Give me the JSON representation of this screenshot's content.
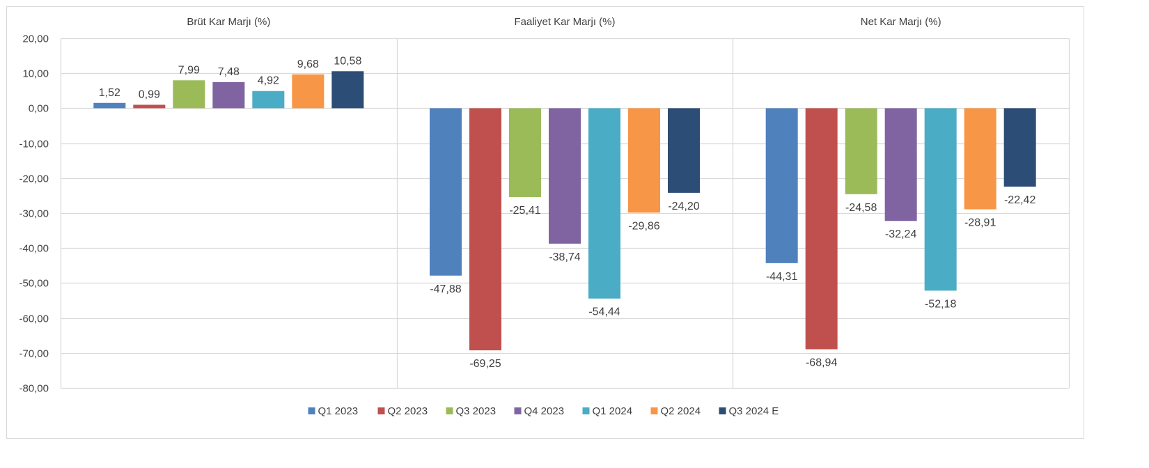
{
  "chart_data": {
    "type": "bar",
    "categories": [
      "Brüt Kar Marjı (%)",
      "Faaliyet Kar Marjı (%)",
      "Net Kar Marjı (%)"
    ],
    "series": [
      {
        "name": "Q1 2023",
        "color": "#4F81BD",
        "values": [
          1.52,
          -47.88,
          -44.31
        ],
        "labels": [
          "1,52",
          "-47,88",
          "-44,31"
        ]
      },
      {
        "name": "Q2 2023",
        "color": "#C0504D",
        "values": [
          0.99,
          -69.25,
          -68.94
        ],
        "labels": [
          "0,99",
          "-69,25",
          "-68,94"
        ]
      },
      {
        "name": "Q3 2023",
        "color": "#9BBB59",
        "values": [
          7.99,
          -25.41,
          -24.58
        ],
        "labels": [
          "7,99",
          "-25,41",
          "-24,58"
        ]
      },
      {
        "name": "Q4 2023",
        "color": "#8064A2",
        "values": [
          7.48,
          -38.74,
          -32.24
        ],
        "labels": [
          "7,48",
          "-38,74",
          "-32,24"
        ]
      },
      {
        "name": "Q1 2024",
        "color": "#4BACC6",
        "values": [
          4.92,
          -54.44,
          -52.18
        ],
        "labels": [
          "4,92",
          "-54,44",
          "-52,18"
        ]
      },
      {
        "name": "Q2 2024",
        "color": "#F79646",
        "values": [
          9.68,
          -29.86,
          -28.91
        ],
        "labels": [
          "9,68",
          "-29,86",
          "-28,91"
        ]
      },
      {
        "name": "Q3 2024 E",
        "color": "#2C4D75",
        "values": [
          10.58,
          -24.2,
          -22.42
        ],
        "labels": [
          "10,58",
          "-24,20",
          "-22,42"
        ]
      }
    ],
    "ylim": [
      -80,
      20
    ],
    "yticks": [
      20,
      10,
      0,
      -10,
      -20,
      -30,
      -40,
      -50,
      -60,
      -70,
      -80
    ],
    "ytick_labels": [
      "20,00",
      "10,00",
      "0,00",
      "-10,00",
      "-20,00",
      "-30,00",
      "-40,00",
      "-50,00",
      "-60,00",
      "-70,00",
      "-80,00"
    ],
    "grid": true,
    "legend": "bottom"
  }
}
